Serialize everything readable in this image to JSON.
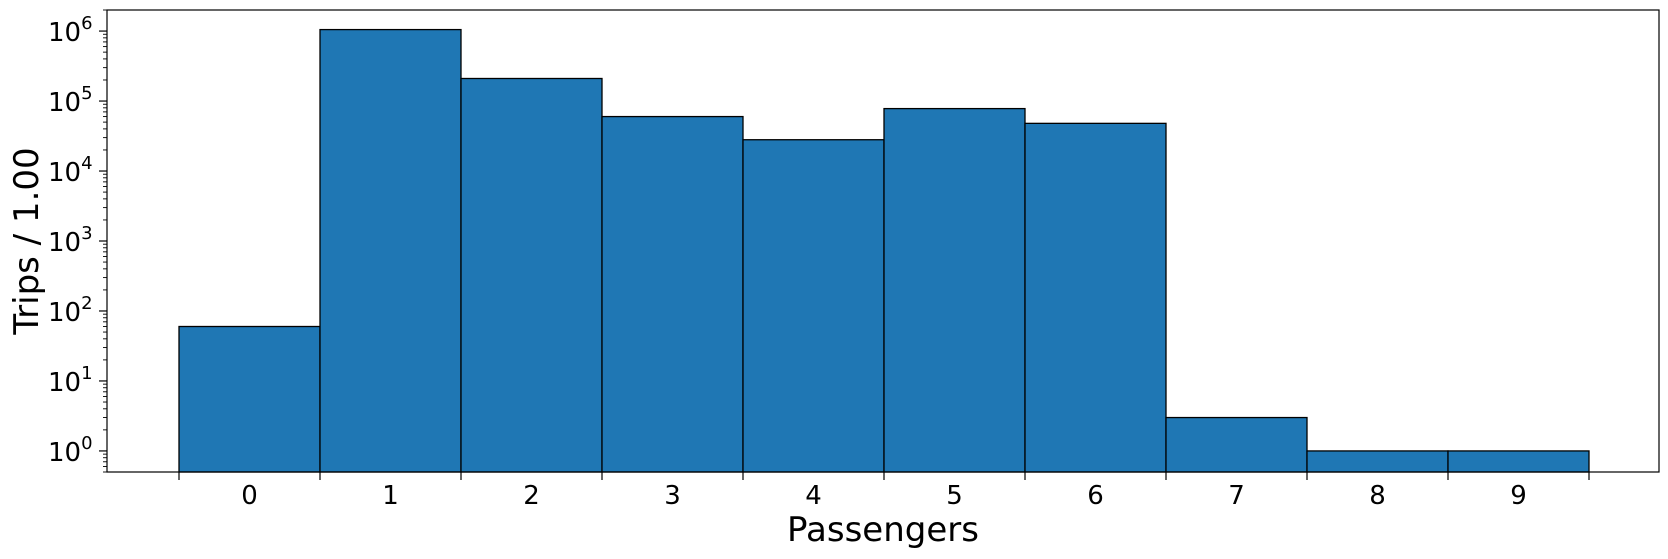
{
  "chart_data": {
    "type": "bar",
    "title": "",
    "xlabel": "Passengers",
    "ylabel": "Trips / 1.00",
    "yscale": "log",
    "ylim": [
      0.5,
      2000000
    ],
    "bar_color": "#1f77b4",
    "edge_color": "#000000",
    "categories": [
      "0",
      "1",
      "2",
      "3",
      "4",
      "5",
      "6",
      "7",
      "8",
      "9"
    ],
    "values": [
      60,
      1050000,
      210000,
      60000,
      28000,
      78000,
      48000,
      3,
      1,
      1
    ],
    "y_ticks": [
      {
        "value": 1,
        "base": "10",
        "exp": "0"
      },
      {
        "value": 10,
        "base": "10",
        "exp": "1"
      },
      {
        "value": 100,
        "base": "10",
        "exp": "2"
      },
      {
        "value": 1000,
        "base": "10",
        "exp": "3"
      },
      {
        "value": 10000,
        "base": "10",
        "exp": "4"
      },
      {
        "value": 100000,
        "base": "10",
        "exp": "5"
      },
      {
        "value": 1000000,
        "base": "10",
        "exp": "6"
      }
    ],
    "grid": false,
    "legend": "none"
  }
}
